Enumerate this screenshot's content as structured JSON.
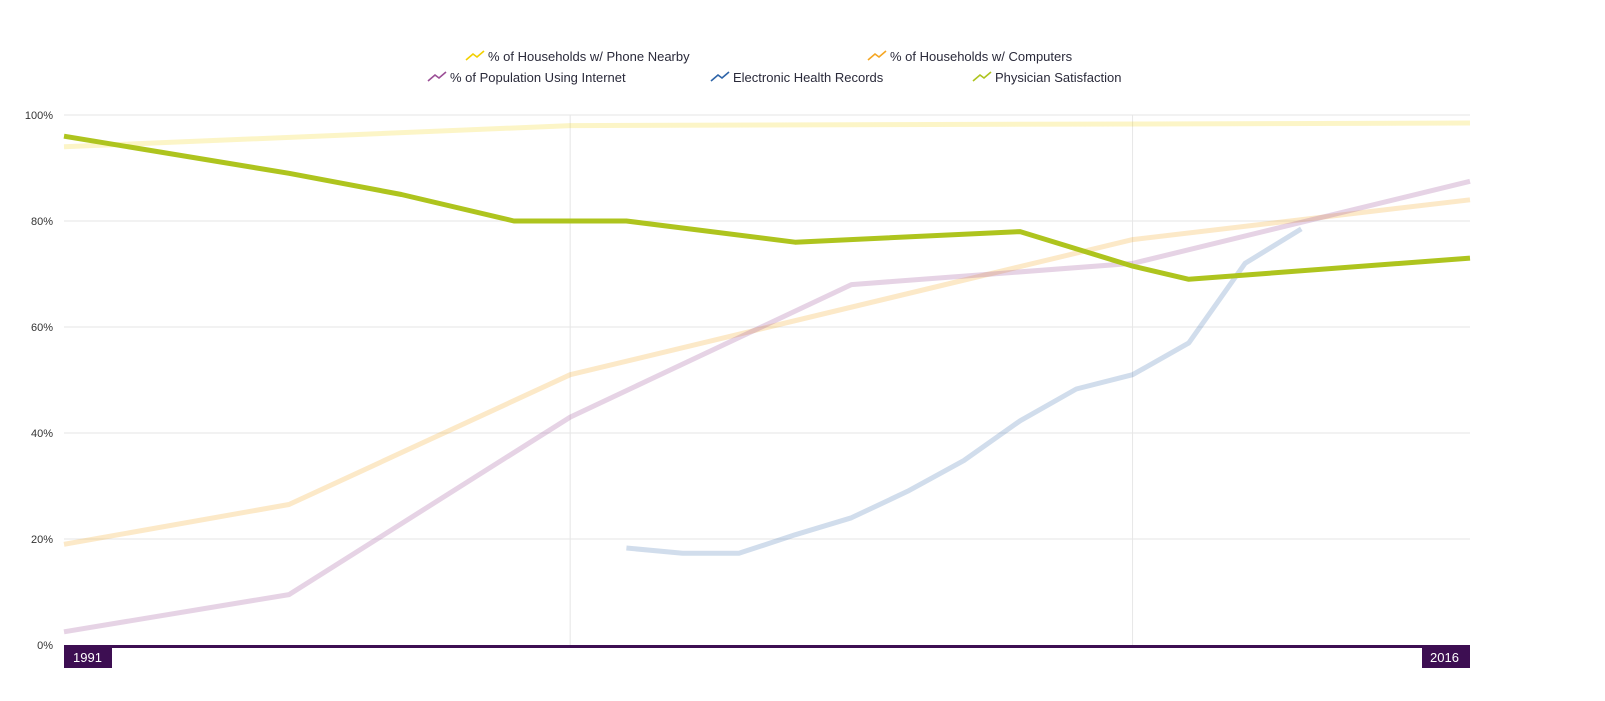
{
  "chart_data": {
    "type": "line",
    "title": "",
    "xlabel": "",
    "ylabel": "",
    "xlim": [
      1991,
      2016
    ],
    "ylim": [
      0,
      100
    ],
    "y_ticks": [
      "0%",
      "20%",
      "40%",
      "60%",
      "80%",
      "100%"
    ],
    "y_tick_values": [
      0,
      20,
      40,
      60,
      80,
      100
    ],
    "x_gridlines": [
      2000,
      2010
    ],
    "x_start_label": "1991",
    "x_end_label": "2016",
    "grid": true,
    "legend_position": "top-center",
    "accent_color": "#3d0e52",
    "series": [
      {
        "name": "% of Households w/ Phone Nearby",
        "color": "#f2d000",
        "opacity": 0.22,
        "highlight": false,
        "x": [
          1991,
          2000,
          2016
        ],
        "values": [
          94,
          98,
          98.5
        ]
      },
      {
        "name": "% of Households w/ Computers",
        "color": "#f5a623",
        "opacity": 0.25,
        "highlight": false,
        "x": [
          1991,
          1995,
          2000,
          2010,
          2016
        ],
        "values": [
          19,
          26.5,
          51,
          76.5,
          84
        ]
      },
      {
        "name": "% of Population Using Internet",
        "color": "#9b4f96",
        "opacity": 0.25,
        "highlight": false,
        "x": [
          1991,
          1995,
          2000,
          2005,
          2010,
          2016
        ],
        "values": [
          2.5,
          9.5,
          43,
          68,
          72,
          87.5
        ]
      },
      {
        "name": "Electronic Health Records",
        "color": "#2e64a8",
        "opacity": 0.22,
        "highlight": false,
        "x": [
          2001,
          2002,
          2003,
          2004,
          2005,
          2006,
          2007,
          2008,
          2009,
          2010,
          2011,
          2012,
          2013
        ],
        "values": [
          18.3,
          17.3,
          17.3,
          20.8,
          24,
          29,
          34.8,
          42.3,
          48.3,
          51,
          57,
          72,
          78.5
        ]
      },
      {
        "name": "Physician Satisfaction",
        "color": "#aec41e",
        "opacity": 1,
        "highlight": true,
        "x": [
          1991,
          1995,
          1997,
          1999,
          2001,
          2004,
          2008,
          2010,
          2011,
          2016
        ],
        "values": [
          96,
          89,
          85,
          80,
          80,
          76,
          78,
          71.5,
          69,
          73
        ]
      }
    ]
  }
}
